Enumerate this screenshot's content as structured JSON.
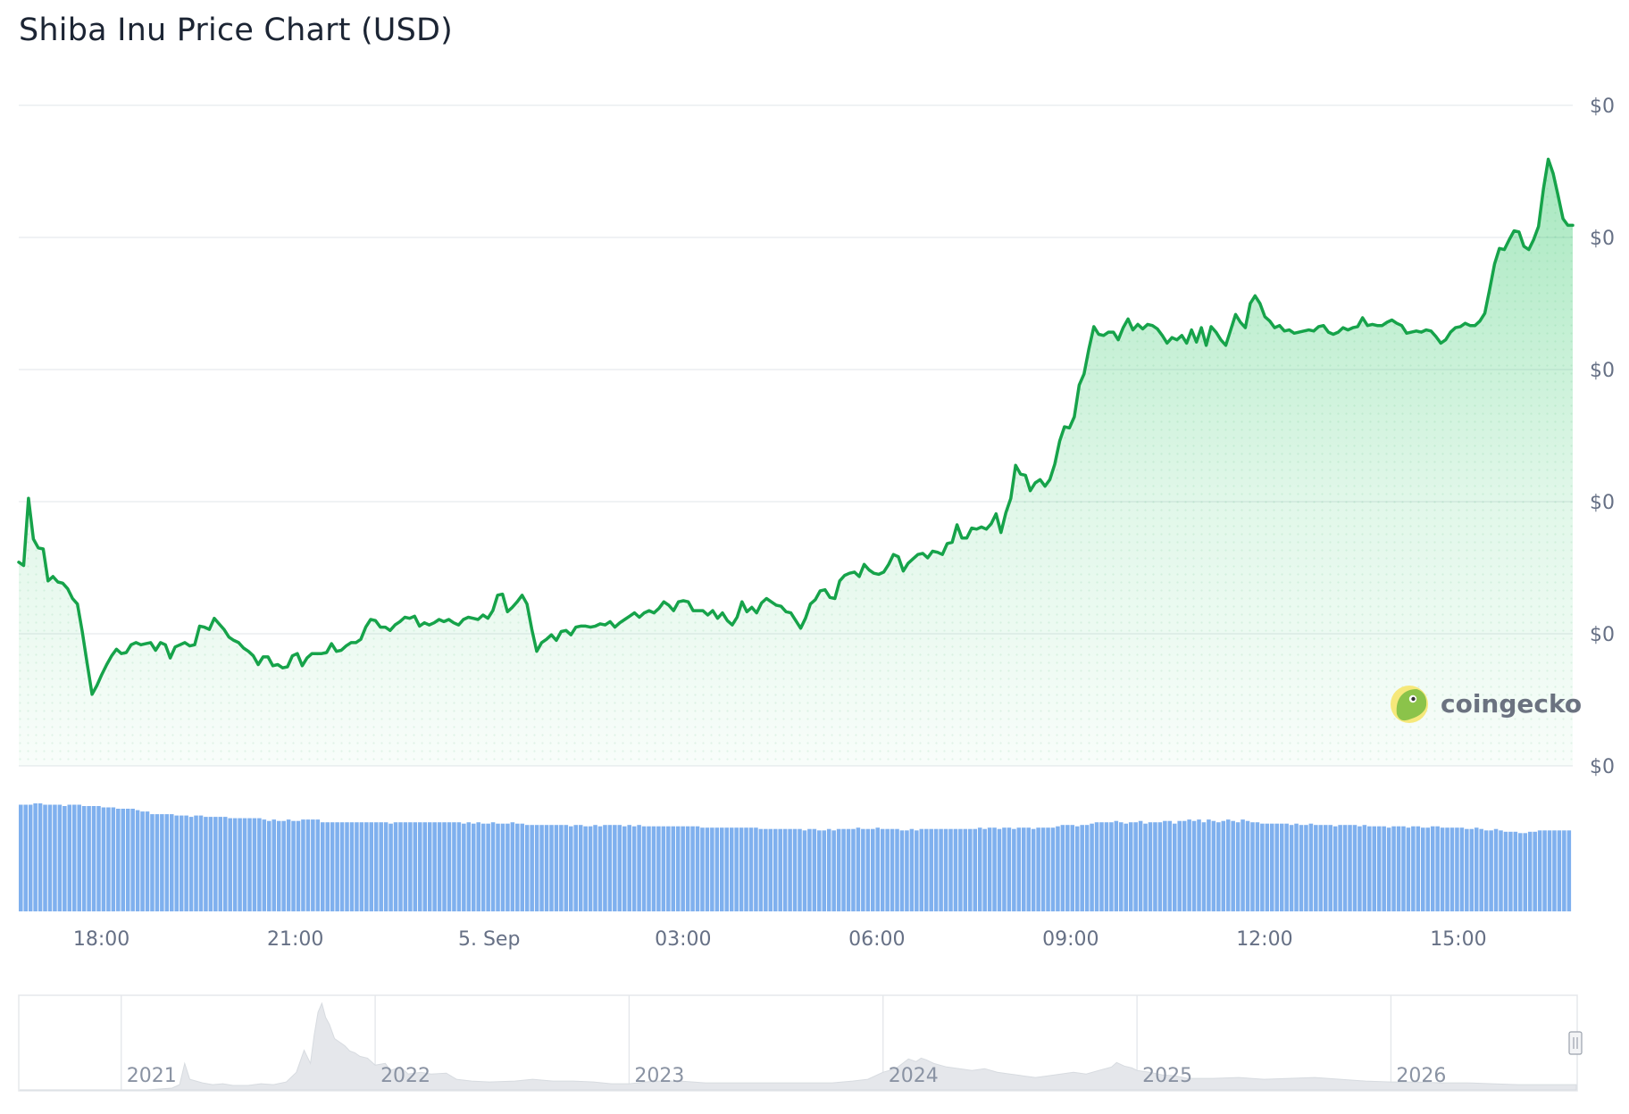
{
  "chart_data": {
    "type": "line",
    "title": "Shiba Inu Price Chart (USD)",
    "xlabel": "",
    "ylabel": "",
    "y_tick_labels": [
      "$0",
      "$0",
      "$0",
      "$0",
      "$0",
      "$0"
    ],
    "x_tick_labels": [
      "18:00",
      "21:00",
      "5. Sep",
      "03:00",
      "06:00",
      "09:00",
      "12:00",
      "15:00"
    ],
    "x_tick_hours": [
      18,
      21,
      24,
      27,
      30,
      33,
      36,
      39
    ],
    "x_range_hours": [
      16.72,
      40.77
    ],
    "ylim": [
      0,
      6
    ],
    "grid": true,
    "legend": "none",
    "line_color": "#16a34a",
    "fill_color": "#22c55e",
    "volume_color": "#7fb0ee",
    "series": [
      {
        "values": [
          1.85,
          1.82,
          2.43,
          2.06,
          1.98,
          1.97,
          1.68,
          1.72,
          1.67,
          1.66,
          1.61,
          1.52,
          1.47,
          1.22,
          0.93,
          0.65,
          0.73,
          0.83,
          0.92,
          1.0,
          1.06,
          1.02,
          1.03,
          1.1,
          1.12,
          1.1,
          1.11,
          1.12,
          1.05,
          1.12,
          1.1,
          0.98,
          1.08,
          1.1,
          1.12,
          1.09,
          1.1,
          1.27,
          1.26,
          1.24,
          1.34,
          1.29,
          1.24,
          1.17,
          1.14,
          1.12,
          1.07,
          1.04,
          1.0,
          0.92,
          0.99,
          0.99,
          0.91,
          0.92,
          0.89,
          0.9,
          1.0,
          1.02,
          0.91,
          0.98,
          1.02,
          1.02,
          1.02,
          1.03,
          1.11,
          1.04,
          1.05,
          1.09,
          1.12,
          1.12,
          1.15,
          1.26,
          1.33,
          1.32,
          1.26,
          1.26,
          1.23,
          1.28,
          1.31,
          1.35,
          1.34,
          1.36,
          1.27,
          1.3,
          1.28,
          1.3,
          1.33,
          1.31,
          1.33,
          1.3,
          1.28,
          1.33,
          1.35,
          1.34,
          1.33,
          1.37,
          1.34,
          1.41,
          1.55,
          1.56,
          1.4,
          1.44,
          1.49,
          1.55,
          1.47,
          1.24,
          1.04,
          1.12,
          1.15,
          1.19,
          1.14,
          1.22,
          1.23,
          1.19,
          1.26,
          1.27,
          1.27,
          1.26,
          1.27,
          1.29,
          1.28,
          1.31,
          1.26,
          1.3,
          1.33,
          1.36,
          1.39,
          1.35,
          1.39,
          1.41,
          1.39,
          1.43,
          1.49,
          1.46,
          1.41,
          1.49,
          1.5,
          1.49,
          1.41,
          1.41,
          1.41,
          1.37,
          1.41,
          1.34,
          1.39,
          1.32,
          1.28,
          1.35,
          1.49,
          1.4,
          1.44,
          1.39,
          1.48,
          1.52,
          1.49,
          1.46,
          1.45,
          1.4,
          1.39,
          1.32,
          1.25,
          1.34,
          1.47,
          1.51,
          1.59,
          1.6,
          1.53,
          1.52,
          1.68,
          1.73,
          1.75,
          1.76,
          1.72,
          1.83,
          1.78,
          1.75,
          1.74,
          1.76,
          1.83,
          1.92,
          1.9,
          1.77,
          1.84,
          1.88,
          1.92,
          1.93,
          1.89,
          1.95,
          1.94,
          1.92,
          2.02,
          2.03,
          2.19,
          2.07,
          2.07,
          2.16,
          2.15,
          2.17,
          2.15,
          2.2,
          2.29,
          2.12,
          2.3,
          2.43,
          2.73,
          2.65,
          2.64,
          2.5,
          2.57,
          2.6,
          2.54,
          2.6,
          2.74,
          2.95,
          3.08,
          3.07,
          3.17,
          3.46,
          3.56,
          3.79,
          3.99,
          3.92,
          3.91,
          3.94,
          3.94,
          3.87,
          3.98,
          4.06,
          3.96,
          4.01,
          3.97,
          4.01,
          4.0,
          3.97,
          3.91,
          3.84,
          3.89,
          3.87,
          3.91,
          3.84,
          3.96,
          3.85,
          3.98,
          3.82,
          3.99,
          3.94,
          3.87,
          3.82,
          3.96,
          4.1,
          4.03,
          3.98,
          4.2,
          4.27,
          4.2,
          4.08,
          4.04,
          3.98,
          4.0,
          3.95,
          3.96,
          3.93,
          3.94,
          3.95,
          3.96,
          3.95,
          3.99,
          4.0,
          3.94,
          3.92,
          3.94,
          3.98,
          3.96,
          3.98,
          3.99,
          4.07,
          4.0,
          4.01,
          4.0,
          4.0,
          4.03,
          4.05,
          4.02,
          4.0,
          3.93,
          3.94,
          3.95,
          3.94,
          3.96,
          3.95,
          3.9,
          3.84,
          3.87,
          3.94,
          3.98,
          3.99,
          4.02,
          4.0,
          4.0,
          4.04,
          4.11,
          4.33,
          4.56,
          4.7,
          4.69,
          4.78,
          4.86,
          4.85,
          4.72,
          4.69,
          4.78,
          4.9,
          5.24,
          5.51,
          5.38,
          5.18,
          4.97,
          4.91,
          4.91
        ]
      }
    ],
    "volume": [
      0.79,
      0.79,
      0.79,
      0.8,
      0.8,
      0.79,
      0.79,
      0.79,
      0.79,
      0.78,
      0.79,
      0.79,
      0.79,
      0.78,
      0.78,
      0.78,
      0.78,
      0.77,
      0.77,
      0.77,
      0.76,
      0.76,
      0.76,
      0.76,
      0.75,
      0.74,
      0.74,
      0.72,
      0.72,
      0.72,
      0.72,
      0.72,
      0.71,
      0.71,
      0.71,
      0.7,
      0.71,
      0.71,
      0.7,
      0.7,
      0.7,
      0.7,
      0.7,
      0.69,
      0.69,
      0.69,
      0.69,
      0.69,
      0.69,
      0.69,
      0.68,
      0.67,
      0.68,
      0.67,
      0.67,
      0.68,
      0.67,
      0.67,
      0.68,
      0.68,
      0.68,
      0.68,
      0.66,
      0.66,
      0.66,
      0.66,
      0.66,
      0.66,
      0.66,
      0.66,
      0.66,
      0.66,
      0.66,
      0.66,
      0.66,
      0.66,
      0.65,
      0.66,
      0.66,
      0.66,
      0.66,
      0.66,
      0.66,
      0.66,
      0.66,
      0.66,
      0.66,
      0.66,
      0.66,
      0.66,
      0.66,
      0.65,
      0.66,
      0.65,
      0.66,
      0.65,
      0.65,
      0.66,
      0.65,
      0.65,
      0.65,
      0.66,
      0.65,
      0.65,
      0.64,
      0.64,
      0.64,
      0.64,
      0.64,
      0.64,
      0.64,
      0.64,
      0.64,
      0.63,
      0.64,
      0.64,
      0.63,
      0.63,
      0.64,
      0.63,
      0.64,
      0.64,
      0.64,
      0.64,
      0.63,
      0.64,
      0.63,
      0.64,
      0.63,
      0.63,
      0.63,
      0.63,
      0.63,
      0.63,
      0.63,
      0.63,
      0.63,
      0.63,
      0.63,
      0.63,
      0.62,
      0.62,
      0.62,
      0.62,
      0.62,
      0.62,
      0.62,
      0.62,
      0.62,
      0.62,
      0.62,
      0.62,
      0.61,
      0.61,
      0.61,
      0.61,
      0.61,
      0.61,
      0.61,
      0.61,
      0.61,
      0.6,
      0.61,
      0.61,
      0.6,
      0.6,
      0.61,
      0.6,
      0.61,
      0.61,
      0.61,
      0.61,
      0.62,
      0.61,
      0.61,
      0.61,
      0.62,
      0.61,
      0.61,
      0.61,
      0.61,
      0.6,
      0.6,
      0.61,
      0.6,
      0.61,
      0.61,
      0.61,
      0.61,
      0.61,
      0.61,
      0.61,
      0.61,
      0.61,
      0.61,
      0.61,
      0.61,
      0.62,
      0.61,
      0.62,
      0.62,
      0.61,
      0.62,
      0.62,
      0.61,
      0.62,
      0.62,
      0.62,
      0.61,
      0.62,
      0.62,
      0.62,
      0.62,
      0.63,
      0.64,
      0.64,
      0.64,
      0.63,
      0.64,
      0.64,
      0.65,
      0.66,
      0.66,
      0.66,
      0.66,
      0.67,
      0.66,
      0.65,
      0.66,
      0.66,
      0.67,
      0.65,
      0.66,
      0.66,
      0.66,
      0.67,
      0.67,
      0.65,
      0.67,
      0.67,
      0.68,
      0.67,
      0.68,
      0.66,
      0.68,
      0.67,
      0.66,
      0.67,
      0.68,
      0.67,
      0.66,
      0.68,
      0.67,
      0.66,
      0.66,
      0.65,
      0.65,
      0.65,
      0.65,
      0.65,
      0.65,
      0.64,
      0.65,
      0.64,
      0.64,
      0.65,
      0.64,
      0.64,
      0.64,
      0.64,
      0.63,
      0.64,
      0.64,
      0.64,
      0.64,
      0.63,
      0.64,
      0.63,
      0.63,
      0.63,
      0.63,
      0.62,
      0.63,
      0.63,
      0.63,
      0.62,
      0.63,
      0.63,
      0.62,
      0.62,
      0.63,
      0.63,
      0.62,
      0.62,
      0.62,
      0.62,
      0.62,
      0.61,
      0.61,
      0.62,
      0.61,
      0.6,
      0.6,
      0.61,
      0.6,
      0.59,
      0.59,
      0.59,
      0.58,
      0.58,
      0.59,
      0.59,
      0.6,
      0.6,
      0.6,
      0.6,
      0.6,
      0.6,
      0.6
    ],
    "navigator": {
      "year_labels": [
        "2021",
        "2022",
        "2023",
        "2024",
        "2025",
        "2026"
      ],
      "years": [
        2021,
        2022,
        2023,
        2024,
        2025,
        2026
      ],
      "range_years": [
        2020.6,
        2026.73
      ],
      "series": [
        [
          2020.6,
          0.0
        ],
        [
          2020.85,
          0.0
        ],
        [
          2021.1,
          0.0
        ],
        [
          2021.2,
          0.02
        ],
        [
          2021.23,
          0.06
        ],
        [
          2021.25,
          0.3
        ],
        [
          2021.27,
          0.12
        ],
        [
          2021.32,
          0.08
        ],
        [
          2021.36,
          0.06
        ],
        [
          2021.4,
          0.07
        ],
        [
          2021.44,
          0.05
        ],
        [
          2021.5,
          0.05
        ],
        [
          2021.55,
          0.07
        ],
        [
          2021.6,
          0.06
        ],
        [
          2021.65,
          0.09
        ],
        [
          2021.69,
          0.2
        ],
        [
          2021.72,
          0.45
        ],
        [
          2021.745,
          0.3
        ],
        [
          2021.76,
          0.62
        ],
        [
          2021.775,
          0.88
        ],
        [
          2021.79,
          0.98
        ],
        [
          2021.805,
          0.82
        ],
        [
          2021.82,
          0.74
        ],
        [
          2021.84,
          0.58
        ],
        [
          2021.86,
          0.54
        ],
        [
          2021.88,
          0.5
        ],
        [
          2021.9,
          0.44
        ],
        [
          2021.92,
          0.42
        ],
        [
          2021.94,
          0.38
        ],
        [
          2021.97,
          0.36
        ],
        [
          2022.0,
          0.28
        ],
        [
          2022.04,
          0.3
        ],
        [
          2022.06,
          0.22
        ],
        [
          2022.1,
          0.26
        ],
        [
          2022.13,
          0.18
        ],
        [
          2022.18,
          0.2
        ],
        [
          2022.22,
          0.18
        ],
        [
          2022.28,
          0.19
        ],
        [
          2022.32,
          0.12
        ],
        [
          2022.38,
          0.1
        ],
        [
          2022.45,
          0.09
        ],
        [
          2022.55,
          0.1
        ],
        [
          2022.62,
          0.12
        ],
        [
          2022.7,
          0.1
        ],
        [
          2022.78,
          0.1
        ],
        [
          2022.86,
          0.09
        ],
        [
          2022.93,
          0.07
        ],
        [
          2023.0,
          0.07
        ],
        [
          2023.1,
          0.1
        ],
        [
          2023.2,
          0.1
        ],
        [
          2023.3,
          0.08
        ],
        [
          2023.4,
          0.08
        ],
        [
          2023.5,
          0.08
        ],
        [
          2023.6,
          0.08
        ],
        [
          2023.7,
          0.08
        ],
        [
          2023.8,
          0.08
        ],
        [
          2023.88,
          0.1
        ],
        [
          2023.94,
          0.12
        ],
        [
          2024.0,
          0.2
        ],
        [
          2024.05,
          0.24
        ],
        [
          2024.1,
          0.35
        ],
        [
          2024.13,
          0.32
        ],
        [
          2024.15,
          0.36
        ],
        [
          2024.17,
          0.34
        ],
        [
          2024.2,
          0.3
        ],
        [
          2024.25,
          0.26
        ],
        [
          2024.3,
          0.24
        ],
        [
          2024.35,
          0.22
        ],
        [
          2024.4,
          0.24
        ],
        [
          2024.45,
          0.2
        ],
        [
          2024.5,
          0.18
        ],
        [
          2024.55,
          0.16
        ],
        [
          2024.6,
          0.14
        ],
        [
          2024.65,
          0.16
        ],
        [
          2024.7,
          0.18
        ],
        [
          2024.75,
          0.2
        ],
        [
          2024.8,
          0.18
        ],
        [
          2024.85,
          0.22
        ],
        [
          2024.9,
          0.26
        ],
        [
          2024.92,
          0.31
        ],
        [
          2024.95,
          0.27
        ],
        [
          2024.98,
          0.25
        ],
        [
          2025.0,
          0.22
        ],
        [
          2025.05,
          0.2
        ],
        [
          2025.1,
          0.17
        ],
        [
          2025.15,
          0.16
        ],
        [
          2025.2,
          0.13
        ],
        [
          2025.3,
          0.13
        ],
        [
          2025.4,
          0.14
        ],
        [
          2025.5,
          0.12
        ],
        [
          2025.6,
          0.13
        ],
        [
          2025.7,
          0.14
        ],
        [
          2025.8,
          0.12
        ],
        [
          2025.9,
          0.1
        ],
        [
          2026.0,
          0.09
        ],
        [
          2026.1,
          0.09
        ],
        [
          2026.2,
          0.08
        ],
        [
          2026.3,
          0.08
        ],
        [
          2026.4,
          0.07
        ],
        [
          2026.5,
          0.06
        ],
        [
          2026.6,
          0.06
        ],
        [
          2026.73,
          0.06
        ]
      ]
    }
  },
  "watermark": {
    "text": "coingecko",
    "icon": "coingecko-logo-icon"
  }
}
